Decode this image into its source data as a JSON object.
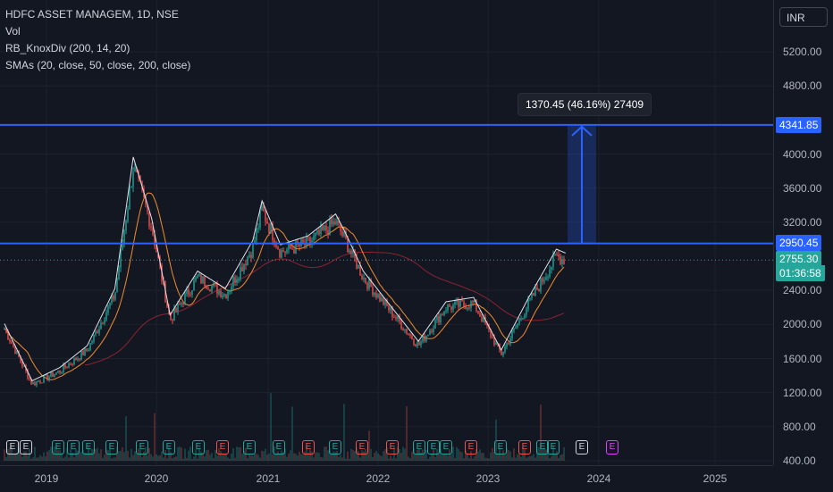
{
  "legend": {
    "symbol": "HDFC ASSET MANAGEM, 1D, NSE",
    "volume": "Vol",
    "indicator1": "RB_KnoxDiv (200, 14, 20)",
    "indicator2": "SMAs (20, close, 50, close, 200, close)"
  },
  "price_axis": {
    "currency": "INR",
    "ticks": [
      "5200.00",
      "4800.00",
      "4000.00",
      "3600.00",
      "3200.00",
      "2400.00",
      "2000.00",
      "1600.00",
      "1200.00",
      "800.00",
      "400.00"
    ],
    "tags": {
      "target": "4341.85",
      "level": "2950.45",
      "last_price": "2755.30",
      "countdown": "01:36:58"
    }
  },
  "time_axis": {
    "labels": [
      "2019",
      "2020",
      "2021",
      "2022",
      "2023",
      "2024",
      "2025"
    ]
  },
  "measure_tool": {
    "label": "1370.45 (46.16%) 27409"
  },
  "earnings_markers": [
    "E",
    "E",
    "E",
    "E",
    "E",
    "E",
    "E",
    "E",
    "E",
    "E",
    "E",
    "E",
    "E",
    "E",
    "E",
    "E",
    "E",
    "E",
    "E",
    "E",
    "E",
    "E",
    "E",
    "E",
    "E",
    "E",
    "E",
    "E",
    "E",
    "E"
  ],
  "colors": {
    "background": "#131722",
    "up": "#26a69a",
    "down": "#ef5350",
    "line_blue": "#2962ff",
    "last_price_tag": "#26a69a",
    "sma_fast": "#ef8d30",
    "sma_slow": "#8d2233"
  },
  "chart_data": {
    "type": "line",
    "title": "HDFC ASSET MANAGEM, 1D, NSE",
    "ylim": [
      400,
      5400
    ],
    "x": [
      "2018-09",
      "2018-12",
      "2019-03",
      "2019-06",
      "2019-09",
      "2019-11",
      "2020-01",
      "2020-03",
      "2020-06",
      "2020-09",
      "2020-12",
      "2021-01",
      "2021-03",
      "2021-06",
      "2021-09",
      "2021-10",
      "2021-12",
      "2022-03",
      "2022-06",
      "2022-09",
      "2022-12",
      "2023-03",
      "2023-06",
      "2023-09",
      "2023-10"
    ],
    "series": [
      {
        "name": "Close",
        "values": [
          1950,
          1300,
          1450,
          1700,
          2350,
          3850,
          3150,
          2050,
          2550,
          2350,
          2900,
          3350,
          2850,
          2950,
          3200,
          3000,
          2550,
          2150,
          1750,
          2200,
          2250,
          1650,
          2250,
          2800,
          2755
        ]
      }
    ],
    "horizontal_levels": [
      4341.85,
      2950.45
    ],
    "last_price": 2755.3
  }
}
